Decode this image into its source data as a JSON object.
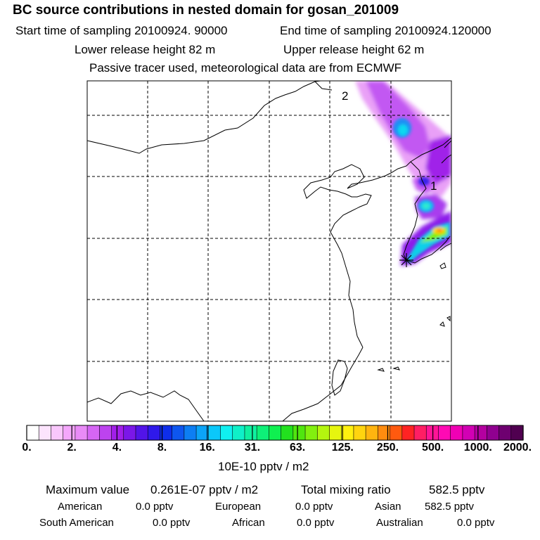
{
  "header": {
    "title": "BC  source contributions in nested domain for gosan_201009",
    "start_label": "Start time of sampling 20100924. 90000",
    "end_label": "End time of sampling 20100924.120000",
    "lower_label": "Lower release height   82 m",
    "upper_label": "Upper release height   62 m",
    "note": "Passive tracer used, meteorological data are from ECMWF"
  },
  "map": {
    "labels": [
      "2",
      "1"
    ],
    "receptor": "gosan",
    "grid": "dashed"
  },
  "colorbar": {
    "tick_labels": [
      "0.",
      "2.",
      "4.",
      "8.",
      "16.",
      "31.",
      "63.",
      "125.",
      "250.",
      "500.",
      "1000.",
      "2000."
    ],
    "units": "10E-10 pptv / m2",
    "colors": [
      "#ffffff",
      "#fce4fd",
      "#f9c7fc",
      "#f4a7fb",
      "#e98bf7",
      "#d566f4",
      "#bd43ef",
      "#a21fe9",
      "#7b17e8",
      "#5214e8",
      "#2f19ea",
      "#0e2eea",
      "#0e56ef",
      "#0d7ef3",
      "#0ca4f7",
      "#0bc8fa",
      "#10f0f0",
      "#0ff0c8",
      "#0ff0a0",
      "#0ef078",
      "#0ff050",
      "#22e11e",
      "#50e60f",
      "#82f00f",
      "#b4f50f",
      "#e6f50f",
      "#fff00f",
      "#ffd40f",
      "#ffb40f",
      "#ff8c0f",
      "#ff5a0f",
      "#ff2323",
      "#ff1e64",
      "#ff1496",
      "#ff0ab4",
      "#f000b4",
      "#d200b4",
      "#b400a0",
      "#900090",
      "#6e0070",
      "#500050"
    ]
  },
  "chart_data": {
    "type": "heatmap",
    "title": "BC  source contributions in nested domain for gosan_201009",
    "units": "10E-10 pptv / m2",
    "scale_levels": [
      0,
      2,
      4,
      8,
      16,
      31,
      63,
      125,
      250,
      500,
      1000,
      2000
    ],
    "max_value": "0.261E-07",
    "total_mixing_ratio_pptv": 582.5,
    "contributions_pptv": {
      "American": 0.0,
      "European": 0.0,
      "Asian": 582.5,
      "South American": 0.0,
      "African": 0.0,
      "Australian": 0.0
    }
  },
  "summary": {
    "max_label": "Maximum value",
    "max_value": "0.261E-07 pptv / m2",
    "total_label": "Total mixing ratio",
    "total_value": "582.5 pptv",
    "regions": [
      {
        "name": "American",
        "value": "0.0 pptv"
      },
      {
        "name": "European",
        "value": "0.0 pptv"
      },
      {
        "name": "Asian",
        "value": "582.5 pptv"
      },
      {
        "name": "South American",
        "value": "0.0 pptv"
      },
      {
        "name": "African",
        "value": "0.0 pptv"
      },
      {
        "name": "Australian",
        "value": "0.0 pptv"
      }
    ]
  }
}
